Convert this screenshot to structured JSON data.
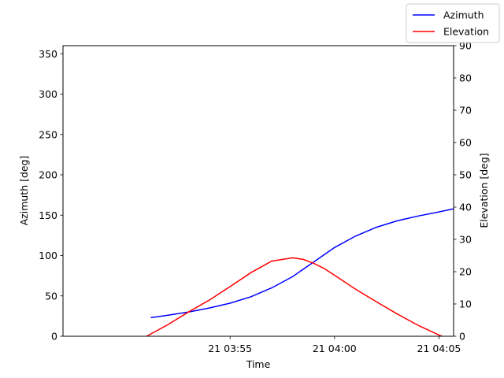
{
  "chart_data": {
    "type": "line",
    "title": "",
    "xlabel": "Time",
    "ylabel_left": "Azimuth [deg]",
    "ylabel_right": "Elevation [deg]",
    "xlim": [
      -4.0,
      14.7
    ],
    "ylim_left": [
      0,
      360
    ],
    "ylim_right": [
      0,
      90
    ],
    "x_unit_note": "minutes after 21 03:51",
    "x_ticks": [
      {
        "value": 4,
        "label": "21 03:55"
      },
      {
        "value": 9,
        "label": "21 04:00"
      },
      {
        "value": 14,
        "label": "21 04:05"
      }
    ],
    "y_ticks_left": [
      0,
      50,
      100,
      150,
      200,
      250,
      300,
      350
    ],
    "y_ticks_right": [
      0,
      10,
      20,
      30,
      40,
      50,
      60,
      70,
      80,
      90
    ],
    "grid": false,
    "legend": {
      "placement": "top-right",
      "entries": [
        "Azimuth",
        "Elevation"
      ]
    },
    "series": [
      {
        "name": "Azimuth",
        "axis": "left",
        "color": "#0000ff",
        "x": [
          0.2,
          1.0,
          2.0,
          3.0,
          4.0,
          5.0,
          6.0,
          7.0,
          8.0,
          9.0,
          10.0,
          11.0,
          12.0,
          13.0,
          14.0,
          14.7
        ],
        "y": [
          23,
          26,
          30,
          35,
          41,
          49,
          60,
          74,
          92,
          110,
          124,
          135,
          143,
          149,
          154,
          158
        ]
      },
      {
        "name": "Elevation",
        "axis": "right",
        "color": "#ff0000",
        "x": [
          0.0,
          1.0,
          2.0,
          3.0,
          4.0,
          5.0,
          6.0,
          7.0,
          7.5,
          8.0,
          8.5,
          9.0,
          10.0,
          11.0,
          12.0,
          13.0,
          14.0,
          14.7
        ],
        "y": [
          0,
          3.5,
          7.5,
          11.2,
          15.4,
          19.7,
          23.3,
          24.3,
          23.8,
          22.6,
          21.0,
          18.9,
          14.6,
          10.7,
          6.9,
          3.4,
          0.4,
          -1.5
        ]
      }
    ]
  }
}
